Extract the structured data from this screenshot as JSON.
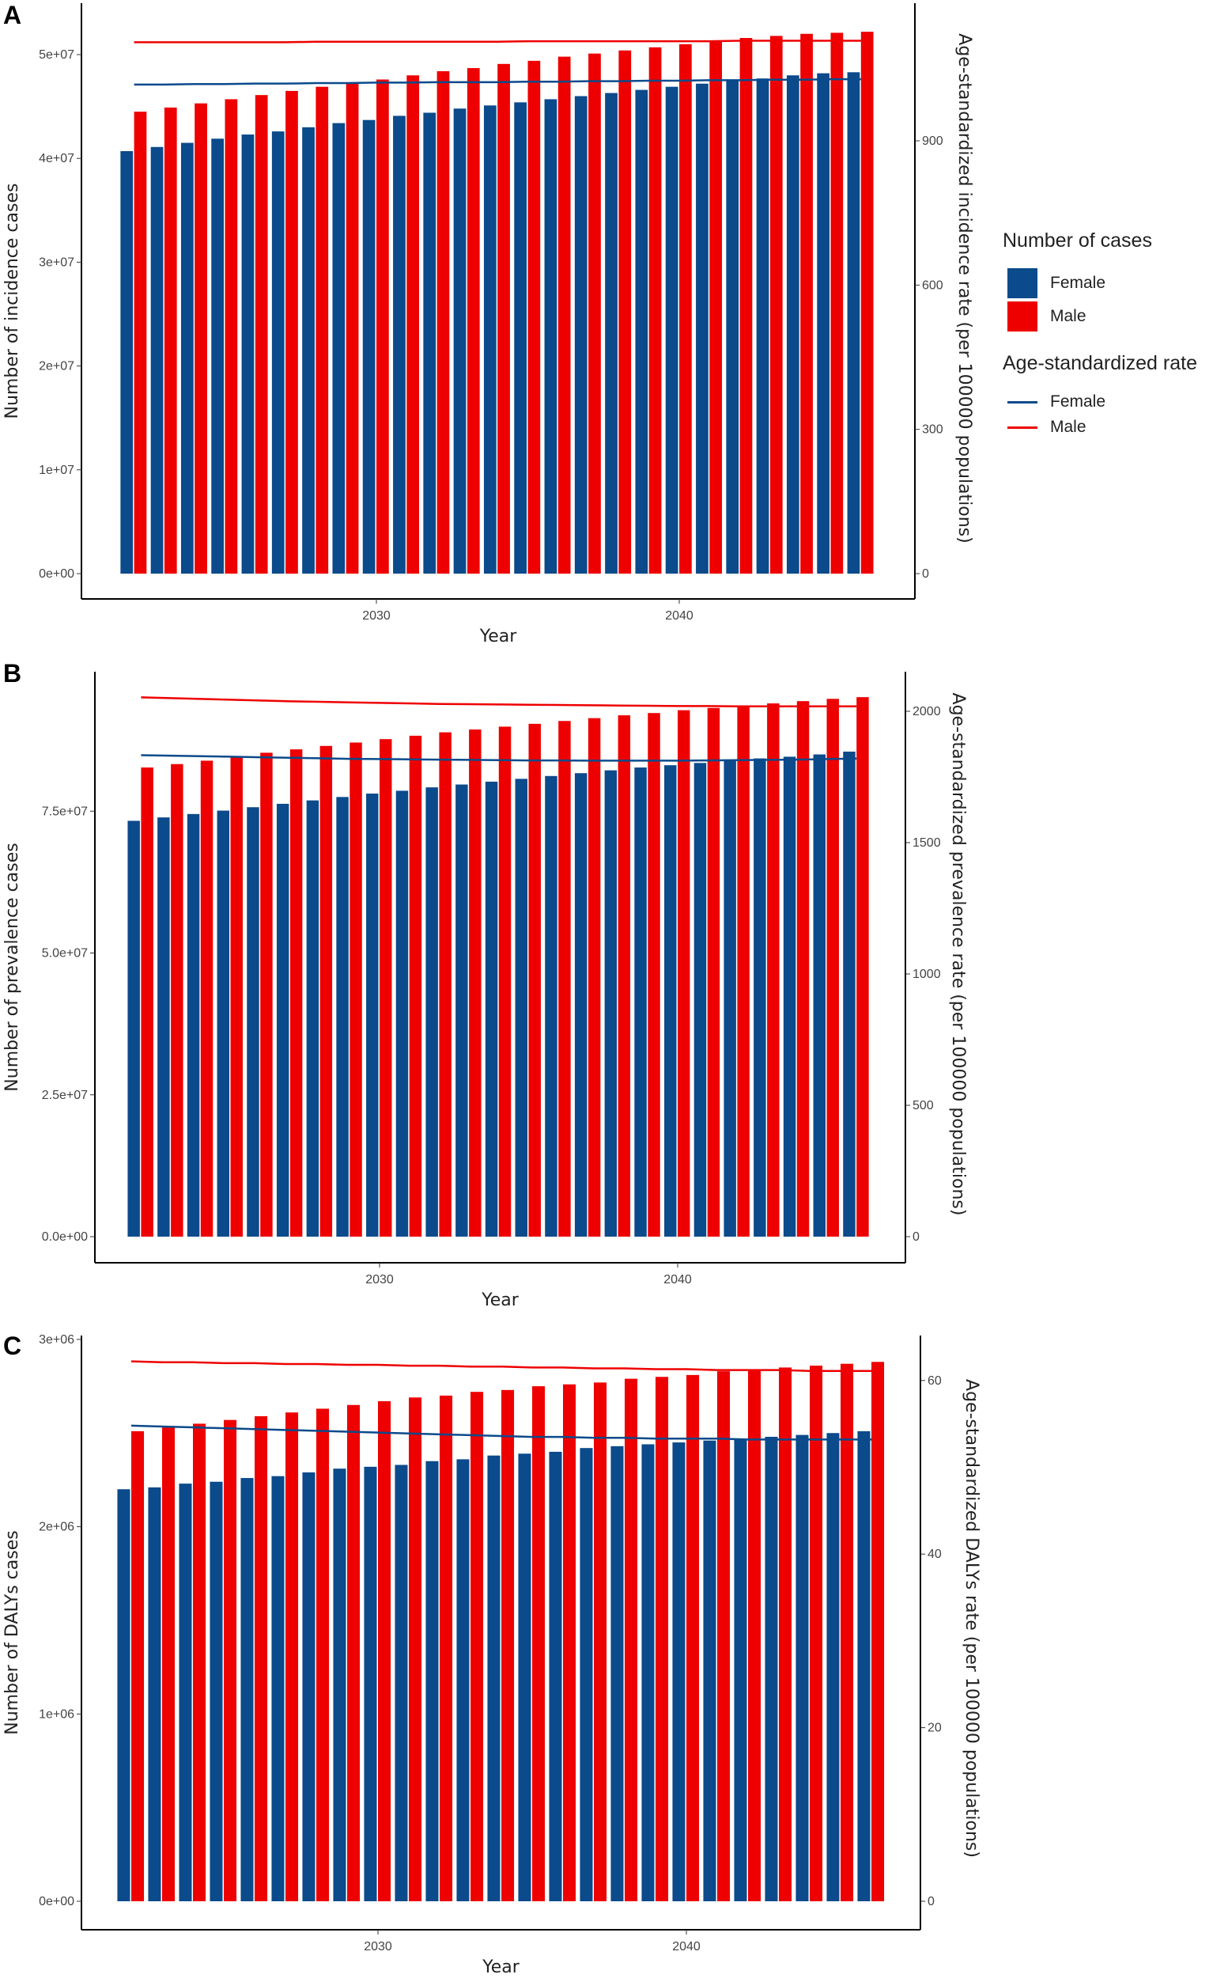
{
  "colors": {
    "female": "#0B4A8B",
    "male": "#EE0000"
  },
  "legend": {
    "cases_title": "Number of cases",
    "rate_title": "Age-standardized rate",
    "female": "Female",
    "male": "Male"
  },
  "chart_data": [
    {
      "panel": "A",
      "type": "bar+line",
      "xlabel": "Year",
      "ylabel": "Number of incidence cases",
      "y2label": "Age-standardized incidence rate (per 100000 populations)",
      "x": [
        2022,
        2023,
        2024,
        2025,
        2026,
        2027,
        2028,
        2029,
        2030,
        2031,
        2032,
        2033,
        2034,
        2035,
        2036,
        2037,
        2038,
        2039,
        2040,
        2041,
        2042,
        2043,
        2044,
        2045,
        2046
      ],
      "x_ticks": [
        "2030",
        "2040"
      ],
      "y_ticks": [
        "0e+00",
        "1e+07",
        "2e+07",
        "3e+07",
        "4e+07",
        "5e+07"
      ],
      "y_tick_values": [
        0,
        10000000,
        20000000,
        30000000,
        40000000,
        50000000
      ],
      "y2_ticks": [
        "0",
        "300",
        "600",
        "900"
      ],
      "y2_tick_values": [
        0,
        300,
        600,
        900
      ],
      "unit_multiplier": 1000000,
      "bars": [
        {
          "name": "Female",
          "values": [
            40.7,
            41.1,
            41.5,
            41.9,
            42.3,
            42.6,
            43.0,
            43.4,
            43.7,
            44.1,
            44.4,
            44.8,
            45.1,
            45.4,
            45.7,
            46.0,
            46.3,
            46.6,
            46.9,
            47.2,
            47.5,
            47.7,
            48.0,
            48.2,
            48.3
          ]
        },
        {
          "name": "Male",
          "values": [
            44.5,
            44.9,
            45.3,
            45.7,
            46.1,
            46.5,
            46.9,
            47.3,
            47.6,
            48.0,
            48.4,
            48.7,
            49.1,
            49.4,
            49.8,
            50.1,
            50.4,
            50.7,
            51.0,
            51.3,
            51.6,
            51.8,
            52.0,
            52.1,
            52.2
          ]
        }
      ],
      "lines": [
        {
          "name": "Female",
          "values": [
            1017,
            1017,
            1018,
            1018,
            1019,
            1019,
            1020,
            1020,
            1021,
            1021,
            1022,
            1022,
            1022,
            1023,
            1023,
            1024,
            1024,
            1025,
            1025,
            1026,
            1026,
            1027,
            1027,
            1028,
            1028
          ]
        },
        {
          "name": "Male",
          "values": [
            1105,
            1105,
            1105,
            1105,
            1105,
            1105,
            1106,
            1106,
            1106,
            1106,
            1106,
            1106,
            1106,
            1107,
            1107,
            1107,
            1107,
            1107,
            1107,
            1107,
            1108,
            1108,
            1108,
            1108,
            1108
          ]
        }
      ]
    },
    {
      "panel": "B",
      "type": "bar+line",
      "xlabel": "Year",
      "ylabel": "Number of prevalence cases",
      "y2label": "Age-standardized prevalence rate (per 100000 populations)",
      "x": [
        2022,
        2023,
        2024,
        2025,
        2026,
        2027,
        2028,
        2029,
        2030,
        2031,
        2032,
        2033,
        2034,
        2035,
        2036,
        2037,
        2038,
        2039,
        2040,
        2041,
        2042,
        2043,
        2044,
        2045,
        2046
      ],
      "x_ticks": [
        "2030",
        "2040"
      ],
      "y_ticks": [
        "0.0e+00",
        "2.5e+07",
        "5.0e+07",
        "7.5e+07"
      ],
      "y_tick_values": [
        0,
        25000000,
        50000000,
        75000000
      ],
      "y2_ticks": [
        "0",
        "500",
        "1000",
        "1500",
        "2000"
      ],
      "y2_tick_values": [
        0,
        500,
        1000,
        1500,
        2000
      ],
      "unit_multiplier": 1000000,
      "bars": [
        {
          "name": "Female",
          "values": [
            73.3,
            73.9,
            74.5,
            75.1,
            75.7,
            76.3,
            76.9,
            77.5,
            78.1,
            78.6,
            79.2,
            79.7,
            80.2,
            80.7,
            81.2,
            81.7,
            82.2,
            82.7,
            83.1,
            83.5,
            83.9,
            84.3,
            84.6,
            85.0,
            85.5
          ]
        },
        {
          "name": "Male",
          "values": [
            82.7,
            83.3,
            83.9,
            84.6,
            85.3,
            85.9,
            86.5,
            87.1,
            87.7,
            88.3,
            88.9,
            89.4,
            89.9,
            90.4,
            90.9,
            91.4,
            91.9,
            92.3,
            92.8,
            93.2,
            93.6,
            94.0,
            94.4,
            94.8,
            95.1
          ]
        }
      ],
      "lines": [
        {
          "name": "Female",
          "values": [
            1833,
            1831,
            1829,
            1827,
            1825,
            1823,
            1821,
            1819,
            1818,
            1817,
            1816,
            1815,
            1814,
            1813,
            1813,
            1812,
            1812,
            1812,
            1812,
            1813,
            1814,
            1815,
            1816,
            1818,
            1820
          ]
        },
        {
          "name": "Male",
          "values": [
            2053,
            2050,
            2047,
            2044,
            2041,
            2038,
            2036,
            2034,
            2032,
            2030,
            2028,
            2027,
            2026,
            2025,
            2024,
            2023,
            2022,
            2021,
            2020,
            2020,
            2019,
            2019,
            2019,
            2019,
            2019
          ]
        }
      ]
    },
    {
      "panel": "C",
      "type": "bar+line",
      "xlabel": "Year",
      "ylabel": "Number of DALYs cases",
      "y2label": "Age-standardized DALYs rate (per 100000 populations)",
      "x": [
        2022,
        2023,
        2024,
        2025,
        2026,
        2027,
        2028,
        2029,
        2030,
        2031,
        2032,
        2033,
        2034,
        2035,
        2036,
        2037,
        2038,
        2039,
        2040,
        2041,
        2042,
        2043,
        2044,
        2045,
        2046
      ],
      "x_ticks": [
        "2030",
        "2040"
      ],
      "y_ticks": [
        "0e+00",
        "1e+06",
        "2e+06",
        "3e+06"
      ],
      "y_tick_values": [
        0,
        1000000,
        2000000,
        3000000
      ],
      "y2_ticks": [
        "0",
        "20",
        "40",
        "60"
      ],
      "y2_tick_values": [
        0,
        20,
        40,
        60
      ],
      "unit_multiplier": 1000000,
      "bars": [
        {
          "name": "Female",
          "values": [
            2.2,
            2.21,
            2.23,
            2.24,
            2.26,
            2.27,
            2.29,
            2.31,
            2.32,
            2.33,
            2.35,
            2.36,
            2.38,
            2.39,
            2.4,
            2.42,
            2.43,
            2.44,
            2.45,
            2.46,
            2.47,
            2.48,
            2.49,
            2.5,
            2.51
          ]
        },
        {
          "name": "Male",
          "values": [
            2.51,
            2.53,
            2.55,
            2.57,
            2.59,
            2.61,
            2.63,
            2.65,
            2.67,
            2.69,
            2.7,
            2.72,
            2.73,
            2.75,
            2.76,
            2.77,
            2.79,
            2.8,
            2.81,
            2.83,
            2.84,
            2.85,
            2.86,
            2.87,
            2.88
          ]
        }
      ],
      "lines": [
        {
          "name": "Female",
          "values": [
            54.8,
            54.7,
            54.6,
            54.5,
            54.4,
            54.3,
            54.2,
            54.1,
            54.0,
            53.9,
            53.8,
            53.7,
            53.6,
            53.5,
            53.5,
            53.4,
            53.4,
            53.3,
            53.3,
            53.3,
            53.2,
            53.2,
            53.2,
            53.2,
            53.2
          ]
        },
        {
          "name": "Male",
          "values": [
            62.2,
            62.1,
            62.1,
            62.0,
            62.0,
            61.9,
            61.9,
            61.8,
            61.8,
            61.7,
            61.7,
            61.6,
            61.6,
            61.5,
            61.5,
            61.4,
            61.4,
            61.3,
            61.3,
            61.2,
            61.2,
            61.2,
            61.1,
            61.1,
            61.1
          ]
        }
      ]
    }
  ]
}
